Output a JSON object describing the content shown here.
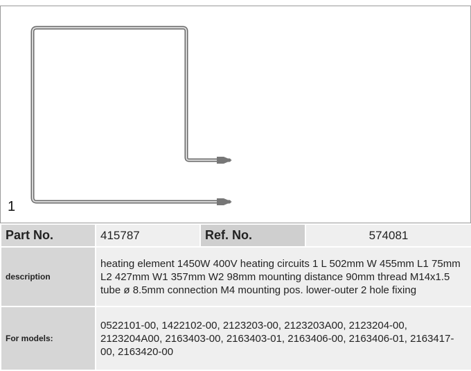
{
  "image_label": "1",
  "table": {
    "rows": [
      [
        "Part No.",
        "415787",
        "Ref. No.",
        "574081"
      ],
      [
        "description",
        "heating element  1450W 400V heating circuits 1 L 502mm W 455mm L1 75mm L2 427mm W1 357mm W2 98mm mounting distance 90mm thread M14x1.5 tube ø 8.5mm connection M4 mounting pos. lower-outer 2 hole fixing"
      ],
      [
        "For models:",
        "0522101-00, 1422102-00, 2123203-00, 2123203A00, 2123204-00, 2123204A00, 2163403-00, 2163403-01, 2163406-00, 2163406-01, 2163417-00, 2163420-00"
      ]
    ]
  }
}
